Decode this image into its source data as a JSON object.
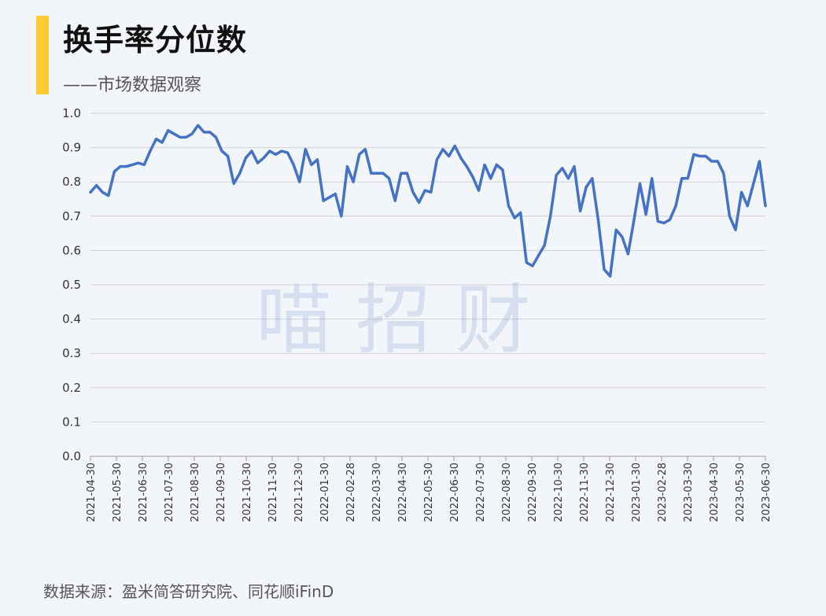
{
  "header": {
    "title": "换手率分位数",
    "subtitle": "——市场数据观察"
  },
  "watermark": "喵 招 财",
  "footer": {
    "source": "数据来源：盈米简答研究院、同花顺iFinD"
  },
  "colors": {
    "accent": "#ffcc33",
    "line": "#4472c4",
    "grid": "#d0d0d0",
    "background": "#f2f6fb"
  },
  "chart_data": {
    "type": "line",
    "title": "换手率分位数",
    "xlabel": "",
    "ylabel": "",
    "ylim": [
      0,
      1.0
    ],
    "yticks": [
      "0.0",
      "0.1",
      "0.2",
      "0.3",
      "0.4",
      "0.5",
      "0.6",
      "0.7",
      "0.8",
      "0.9",
      "1.0"
    ],
    "xticks": [
      "2021-04-30",
      "2021-05-30",
      "2021-06-30",
      "2021-07-30",
      "2021-08-30",
      "2021-09-30",
      "2021-10-30",
      "2021-11-30",
      "2021-12-30",
      "2022-01-30",
      "2022-02-28",
      "2022-03-30",
      "2022-04-30",
      "2022-05-30",
      "2022-06-30",
      "2022-07-30",
      "2022-08-30",
      "2022-09-30",
      "2022-10-30",
      "2022-11-30",
      "2022-12-30",
      "2023-01-30",
      "2023-02-28",
      "2023-03-30",
      "2023-04-30",
      "2023-05-30",
      "2023-06-30"
    ],
    "grid": true,
    "legend": "none",
    "series": [
      {
        "values": [
          0.77,
          0.79,
          0.77,
          0.76,
          0.83,
          0.845,
          0.845,
          0.85,
          0.855,
          0.85,
          0.89,
          0.925,
          0.915,
          0.95,
          0.94,
          0.93,
          0.93,
          0.94,
          0.965,
          0.945,
          0.945,
          0.93,
          0.89,
          0.875,
          0.795,
          0.825,
          0.87,
          0.89,
          0.855,
          0.87,
          0.89,
          0.88,
          0.89,
          0.885,
          0.85,
          0.8,
          0.895,
          0.85,
          0.865,
          0.745,
          0.755,
          0.765,
          0.7,
          0.845,
          0.8,
          0.88,
          0.895,
          0.825,
          0.825,
          0.825,
          0.81,
          0.745,
          0.825,
          0.825,
          0.77,
          0.74,
          0.775,
          0.77,
          0.865,
          0.895,
          0.875,
          0.905,
          0.87,
          0.845,
          0.815,
          0.775,
          0.85,
          0.81,
          0.85,
          0.835,
          0.73,
          0.695,
          0.71,
          0.565,
          0.555,
          0.585,
          0.615,
          0.7,
          0.82,
          0.84,
          0.81,
          0.845,
          0.715,
          0.785,
          0.81,
          0.69,
          0.545,
          0.525,
          0.66,
          0.64,
          0.59,
          0.69,
          0.795,
          0.705,
          0.81,
          0.685,
          0.68,
          0.69,
          0.73,
          0.81,
          0.81,
          0.88,
          0.875,
          0.875,
          0.86,
          0.86,
          0.825,
          0.7,
          0.66,
          0.77,
          0.73,
          0.795,
          0.86,
          0.73
        ]
      }
    ]
  }
}
